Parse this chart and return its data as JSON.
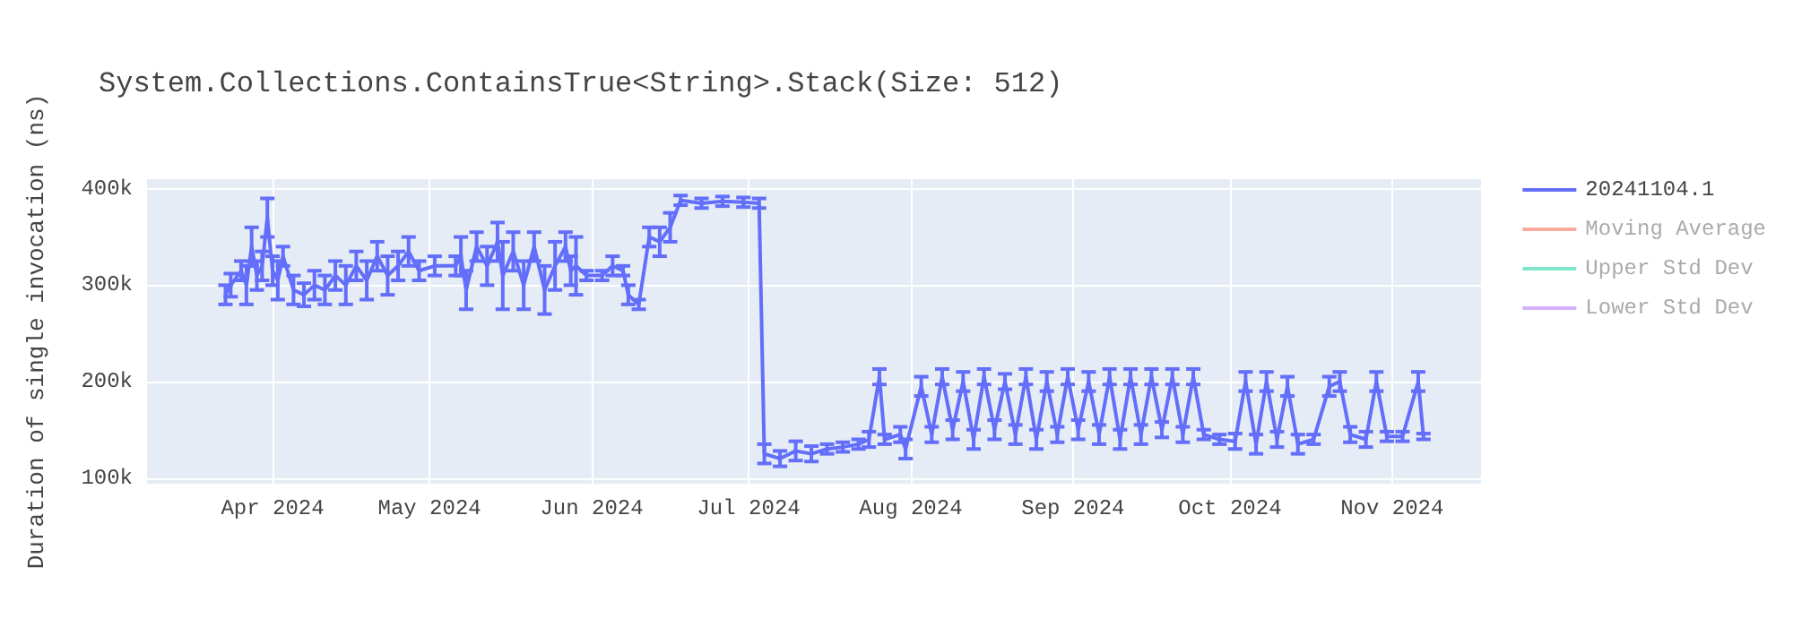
{
  "chart_data": {
    "type": "line",
    "title": "System.Collections.ContainsTrue<String>.Stack(Size: 512)",
    "ylabel": "Duration of single invocation (ns)",
    "x": [
      "2024-03-23",
      "2024-03-24",
      "2024-03-26",
      "2024-03-27",
      "2024-03-28",
      "2024-03-29",
      "2024-03-30",
      "2024-03-31",
      "2024-04-01",
      "2024-04-02",
      "2024-04-03",
      "2024-04-05",
      "2024-04-07",
      "2024-04-09",
      "2024-04-11",
      "2024-04-13",
      "2024-04-15",
      "2024-04-17",
      "2024-04-19",
      "2024-04-21",
      "2024-04-23",
      "2024-04-25",
      "2024-04-27",
      "2024-04-29",
      "2024-05-02",
      "2024-05-06",
      "2024-05-07",
      "2024-05-08",
      "2024-05-10",
      "2024-05-12",
      "2024-05-14",
      "2024-05-15",
      "2024-05-17",
      "2024-05-19",
      "2024-05-21",
      "2024-05-23",
      "2024-05-25",
      "2024-05-27",
      "2024-05-28",
      "2024-05-29",
      "2024-05-31",
      "2024-06-03",
      "2024-06-05",
      "2024-06-07",
      "2024-06-08",
      "2024-06-10",
      "2024-06-12",
      "2024-06-14",
      "2024-06-16",
      "2024-06-18",
      "2024-06-22",
      "2024-06-26",
      "2024-06-30",
      "2024-07-03",
      "2024-07-04",
      "2024-07-07",
      "2024-07-10",
      "2024-07-13",
      "2024-07-16",
      "2024-07-19",
      "2024-07-22",
      "2024-07-24",
      "2024-07-26",
      "2024-07-27",
      "2024-07-30",
      "2024-07-31",
      "2024-08-03",
      "2024-08-05",
      "2024-08-07",
      "2024-08-09",
      "2024-08-11",
      "2024-08-13",
      "2024-08-15",
      "2024-08-17",
      "2024-08-19",
      "2024-08-21",
      "2024-08-23",
      "2024-08-25",
      "2024-08-27",
      "2024-08-29",
      "2024-08-31",
      "2024-09-02",
      "2024-09-04",
      "2024-09-06",
      "2024-09-08",
      "2024-09-10",
      "2024-09-12",
      "2024-09-14",
      "2024-09-16",
      "2024-09-18",
      "2024-09-20",
      "2024-09-22",
      "2024-09-24",
      "2024-09-26",
      "2024-09-29",
      "2024-10-02",
      "2024-10-04",
      "2024-10-06",
      "2024-10-08",
      "2024-10-10",
      "2024-10-12",
      "2024-10-14",
      "2024-10-17",
      "2024-10-20",
      "2024-10-22",
      "2024-10-24",
      "2024-10-27",
      "2024-10-29",
      "2024-10-31",
      "2024-11-03",
      "2024-11-06",
      "2024-11-07"
    ],
    "series": [
      {
        "name": "20241104.1",
        "color": "#636efa",
        "values": [
          290000,
          300000,
          315000,
          300000,
          340000,
          310000,
          320000,
          370000,
          315000,
          305000,
          330000,
          295000,
          290000,
          300000,
          295000,
          310000,
          300000,
          320000,
          305000,
          330000,
          310000,
          320000,
          335000,
          315000,
          320000,
          320000,
          330000,
          295000,
          340000,
          320000,
          345000,
          310000,
          335000,
          300000,
          340000,
          295000,
          320000,
          340000,
          315000,
          320000,
          310000,
          310000,
          320000,
          315000,
          290000,
          280000,
          350000,
          345000,
          360000,
          388000,
          385000,
          387000,
          386000,
          385000,
          125000,
          120000,
          128000,
          125000,
          130000,
          132000,
          135000,
          140000,
          205000,
          140000,
          145000,
          130000,
          195000,
          145000,
          205000,
          150000,
          200000,
          140000,
          205000,
          150000,
          200000,
          145000,
          205000,
          140000,
          200000,
          145000,
          205000,
          150000,
          200000,
          145000,
          205000,
          140000,
          205000,
          145000,
          205000,
          150000,
          205000,
          145000,
          205000,
          145000,
          140000,
          138000,
          200000,
          135000,
          200000,
          140000,
          195000,
          135000,
          140000,
          195000,
          200000,
          145000,
          140000,
          200000,
          143000,
          143000,
          200000,
          143000
        ],
        "errors": [
          10000,
          12000,
          10000,
          20000,
          20000,
          15000,
          15000,
          20000,
          15000,
          20000,
          10000,
          15000,
          12000,
          15000,
          15000,
          15000,
          20000,
          15000,
          20000,
          15000,
          20000,
          15000,
          15000,
          10000,
          10000,
          10000,
          20000,
          20000,
          15000,
          20000,
          20000,
          35000,
          20000,
          25000,
          15000,
          25000,
          25000,
          15000,
          15000,
          30000,
          5000,
          5000,
          10000,
          5000,
          10000,
          5000,
          10000,
          15000,
          15000,
          5000,
          5000,
          5000,
          5000,
          5000,
          10000,
          8000,
          10000,
          8000,
          5000,
          5000,
          5000,
          8000,
          8000,
          5000,
          8000,
          10000,
          10000,
          8000,
          8000,
          10000,
          10000,
          10000,
          8000,
          10000,
          8000,
          10000,
          8000,
          10000,
          10000,
          8000,
          8000,
          10000,
          10000,
          10000,
          8000,
          10000,
          8000,
          10000,
          8000,
          8000,
          8000,
          8000,
          8000,
          5000,
          5000,
          8000,
          10000,
          10000,
          10000,
          8000,
          10000,
          10000,
          5000,
          10000,
          10000,
          8000,
          8000,
          10000,
          5000,
          5000,
          10000,
          3000
        ]
      },
      {
        "name": "Moving Average",
        "color": "#ef553b",
        "values": [
          null,
          null,
          null,
          null,
          null,
          null,
          null,
          null,
          null,
          null,
          null,
          null,
          null,
          null,
          null,
          null,
          null,
          null,
          null,
          null,
          null,
          null,
          null,
          null,
          null,
          null,
          null,
          null,
          null,
          null,
          null,
          null,
          null,
          null,
          null,
          null,
          null,
          null,
          null,
          null,
          null,
          null,
          null,
          null,
          null,
          null,
          null,
          null,
          null,
          null,
          null,
          null,
          null,
          null,
          null,
          null,
          null,
          null,
          null,
          null,
          null,
          null,
          null,
          null,
          null,
          null,
          null,
          null,
          null,
          null,
          null,
          null,
          null,
          null,
          null,
          null,
          null,
          null,
          null,
          null,
          null,
          null,
          null,
          null,
          null,
          null,
          null,
          null,
          null,
          null,
          null,
          null,
          null,
          null,
          null,
          null,
          null,
          null,
          null,
          null,
          null,
          null,
          null,
          null,
          null,
          null,
          null,
          null,
          null,
          null,
          null,
          null
        ]
      },
      {
        "name": "Upper Std Dev",
        "color": "#00cc96",
        "values": [
          null,
          null,
          null,
          null,
          null,
          null,
          null,
          null,
          null,
          null,
          null,
          null,
          null,
          null,
          null,
          null,
          null,
          null,
          null,
          null,
          null,
          null,
          null,
          null,
          null,
          null,
          null,
          null,
          null,
          null,
          null,
          null,
          null,
          null,
          null,
          null,
          null,
          null,
          null,
          null,
          null,
          null,
          null,
          null,
          null,
          null,
          null,
          null,
          null,
          null,
          null,
          null,
          null,
          null,
          null,
          null,
          null,
          null,
          null,
          null,
          null,
          null,
          null,
          null,
          null,
          null,
          null,
          null,
          null,
          null,
          null,
          null,
          null,
          null,
          null,
          null,
          null,
          null,
          null,
          null,
          null,
          null,
          null,
          null,
          null,
          null,
          null,
          null,
          null,
          null,
          null,
          null,
          null,
          null,
          null,
          null,
          null,
          null,
          null,
          null,
          null,
          null,
          null,
          null,
          null,
          null,
          null,
          null,
          null,
          null,
          null,
          null
        ]
      },
      {
        "name": "Lower Std Dev",
        "color": "#ab63fa",
        "values": [
          null,
          null,
          null,
          null,
          null,
          null,
          null,
          null,
          null,
          null,
          null,
          null,
          null,
          null,
          null,
          null,
          null,
          null,
          null,
          null,
          null,
          null,
          null,
          null,
          null,
          null,
          null,
          null,
          null,
          null,
          null,
          null,
          null,
          null,
          null,
          null,
          null,
          null,
          null,
          null,
          null,
          null,
          null,
          null,
          null,
          null,
          null,
          null,
          null,
          null,
          null,
          null,
          null,
          null,
          null,
          null,
          null,
          null,
          null,
          null,
          null,
          null,
          null,
          null,
          null,
          null,
          null,
          null,
          null,
          null,
          null,
          null,
          null,
          null,
          null,
          null,
          null,
          null,
          null,
          null,
          null,
          null,
          null,
          null,
          null,
          null,
          null,
          null,
          null,
          null,
          null,
          null,
          null,
          null,
          null,
          null,
          null,
          null,
          null,
          null,
          null,
          null,
          null,
          null,
          null,
          null,
          null,
          null,
          null,
          null,
          null,
          null
        ]
      }
    ],
    "xlim": [
      "2024-03-08",
      "2024-11-18"
    ],
    "xticks": [
      {
        "value": "2024-04-01",
        "label": "Apr 2024"
      },
      {
        "value": "2024-05-01",
        "label": "May 2024"
      },
      {
        "value": "2024-06-01",
        "label": "Jun 2024"
      },
      {
        "value": "2024-07-01",
        "label": "Jul 2024"
      },
      {
        "value": "2024-08-01",
        "label": "Aug 2024"
      },
      {
        "value": "2024-09-01",
        "label": "Sep 2024"
      },
      {
        "value": "2024-10-01",
        "label": "Oct 2024"
      },
      {
        "value": "2024-11-01",
        "label": "Nov 2024"
      }
    ],
    "ylim": [
      94000,
      410000
    ],
    "yticks": [
      {
        "value": 100000,
        "label": "100k"
      },
      {
        "value": 200000,
        "label": "200k"
      },
      {
        "value": 300000,
        "label": "300k"
      },
      {
        "value": 400000,
        "label": "400k"
      }
    ],
    "grid": true,
    "legend": "right",
    "line_style": "solid"
  }
}
